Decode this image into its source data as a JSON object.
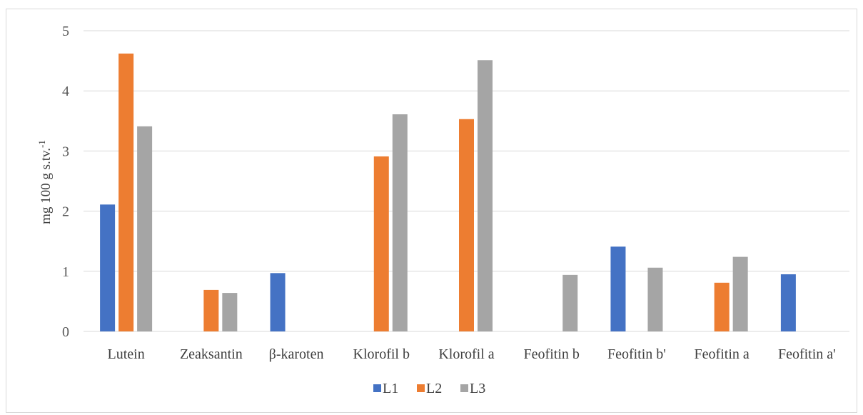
{
  "chart_data": {
    "type": "bar",
    "categories": [
      "Lutein",
      "Zeaksantin",
      "β-karoten",
      "Klorofil b",
      "Klorofil a",
      "Feofitin b",
      "Feofitin b'",
      "Feofitin a",
      "Feofitin a'"
    ],
    "series": [
      {
        "name": "L1",
        "color": "#4472c4",
        "values": [
          2.11,
          0,
          0.97,
          0,
          0,
          0,
          1.41,
          0,
          0.95
        ]
      },
      {
        "name": "L2",
        "color": "#ed7d31",
        "values": [
          4.62,
          0.69,
          0,
          2.91,
          3.53,
          0,
          0,
          0.81,
          0
        ]
      },
      {
        "name": "L3",
        "color": "#a5a5a5",
        "values": [
          3.41,
          0.64,
          0,
          3.61,
          4.51,
          0.94,
          1.06,
          1.24,
          0
        ]
      }
    ],
    "ylabel_main": "mg 100 g s.tv.",
    "ylabel_sup": "-1",
    "ylim": [
      0,
      5
    ],
    "yticks": [
      "0",
      "1",
      "2",
      "3",
      "4",
      "5"
    ],
    "grid": true,
    "legend_position": "bottom"
  }
}
